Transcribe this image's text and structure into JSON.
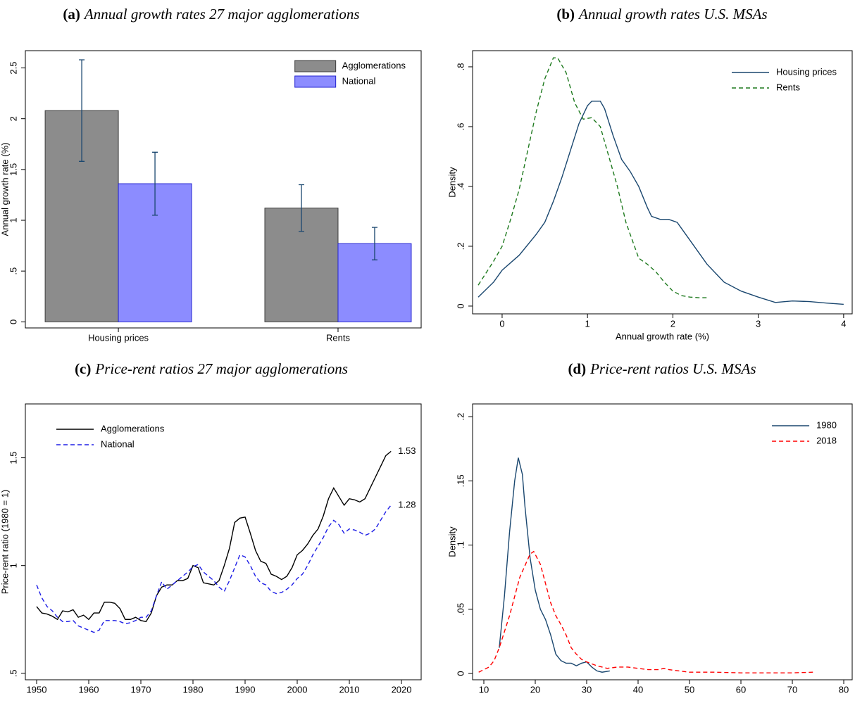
{
  "chart_data": [
    {
      "type": "bar",
      "label": "(a)",
      "title": "Annual growth rates 27 major agglomerations",
      "ylabel": "Annual growth rate (%)",
      "categories": [
        "Housing prices",
        "Rents"
      ],
      "series": [
        {
          "name": "Agglomerations",
          "color": "#8c8c8c",
          "values": [
            2.08,
            1.12
          ],
          "errors": [
            0.5,
            0.23
          ]
        },
        {
          "name": "National",
          "color": "#8c8cff",
          "values": [
            1.36,
            0.77
          ],
          "errors": [
            0.31,
            0.16
          ]
        }
      ],
      "ylim": [
        -0.06,
        2.67
      ],
      "yticks": [
        0,
        {
          "value": 0.5,
          "label": ".5"
        },
        1,
        1.5,
        2,
        2.5
      ],
      "legend": "upper right",
      "grid": false
    },
    {
      "type": "line",
      "label": "(b)",
      "title": "Annual growth rates U.S. MSAs",
      "xlabel": "Annual growth rate (%)",
      "ylabel": "Density",
      "series": [
        {
          "name": "Housing prices",
          "color": "#1a476f",
          "line_style": "solid",
          "x": [
            -0.28,
            -0.1,
            0,
            0.2,
            0.4,
            0.5,
            0.6,
            0.7,
            0.8,
            0.9,
            1.0,
            1.05,
            1.15,
            1.2,
            1.3,
            1.4,
            1.5,
            1.6,
            1.7,
            1.75,
            1.85,
            1.95,
            2.05,
            2.2,
            2.4,
            2.6,
            2.8,
            3.0,
            3.2,
            3.4,
            3.6,
            3.8,
            4.0
          ],
          "values": [
            0.03,
            0.08,
            0.12,
            0.17,
            0.24,
            0.28,
            0.35,
            0.43,
            0.52,
            0.61,
            0.67,
            0.685,
            0.685,
            0.66,
            0.57,
            0.49,
            0.45,
            0.4,
            0.33,
            0.3,
            0.29,
            0.29,
            0.28,
            0.22,
            0.14,
            0.08,
            0.05,
            0.03,
            0.012,
            0.017,
            0.015,
            0.01,
            0.006
          ]
        },
        {
          "name": "Rents",
          "color": "#1f7a1f",
          "line_style": "dashed",
          "x": [
            -0.28,
            -0.1,
            0,
            0.1,
            0.2,
            0.3,
            0.4,
            0.5,
            0.6,
            0.65,
            0.75,
            0.85,
            0.95,
            1.05,
            1.15,
            1.25,
            1.35,
            1.45,
            1.55,
            1.6,
            1.7,
            1.8,
            1.9,
            2.0,
            2.1,
            2.2,
            2.3,
            2.4
          ],
          "values": [
            0.07,
            0.15,
            0.2,
            0.29,
            0.39,
            0.52,
            0.65,
            0.76,
            0.83,
            0.83,
            0.78,
            0.68,
            0.625,
            0.63,
            0.6,
            0.5,
            0.4,
            0.28,
            0.2,
            0.16,
            0.14,
            0.115,
            0.08,
            0.05,
            0.035,
            0.03,
            0.028,
            0.028
          ]
        }
      ],
      "xlim": [
        -0.346,
        4.1
      ],
      "xticks": [
        0,
        1,
        2,
        3,
        4
      ],
      "ylim": [
        -0.026,
        0.854
      ],
      "yticks": [
        0,
        {
          "value": 0.2,
          "label": ".2"
        },
        {
          "value": 0.4,
          "label": ".4"
        },
        {
          "value": 0.6,
          "label": ".6"
        },
        {
          "value": 0.8,
          "label": ".8"
        }
      ],
      "legend": "upper right",
      "grid": false
    },
    {
      "type": "line",
      "label": "(c)",
      "title": "Price-rent ratios 27 major agglomerations",
      "ylabel": "Price-rent ratio (1980 = 1)",
      "x": [
        1950,
        1951,
        1952,
        1953,
        1954,
        1955,
        1956,
        1957,
        1958,
        1959,
        1960,
        1961,
        1962,
        1963,
        1964,
        1965,
        1966,
        1967,
        1968,
        1969,
        1970,
        1971,
        1972,
        1973,
        1974,
        1975,
        1976,
        1977,
        1978,
        1979,
        1980,
        1981,
        1982,
        1983,
        1984,
        1985,
        1986,
        1987,
        1988,
        1989,
        1990,
        1991,
        1992,
        1993,
        1994,
        1995,
        1996,
        1997,
        1998,
        1999,
        2000,
        2001,
        2002,
        2003,
        2004,
        2005,
        2006,
        2007,
        2008,
        2009,
        2010,
        2011,
        2012,
        2013,
        2014,
        2015,
        2016,
        2017,
        2018
      ],
      "series": [
        {
          "name": "Agglomerations",
          "color": "#000000",
          "line_style": "solid",
          "values": [
            0.81,
            0.78,
            0.775,
            0.765,
            0.75,
            0.79,
            0.785,
            0.795,
            0.76,
            0.77,
            0.75,
            0.78,
            0.78,
            0.83,
            0.83,
            0.825,
            0.8,
            0.75,
            0.75,
            0.76,
            0.745,
            0.74,
            0.78,
            0.86,
            0.9,
            0.91,
            0.91,
            0.93,
            0.93,
            0.94,
            1.0,
            0.99,
            0.92,
            0.915,
            0.91,
            0.93,
            1.0,
            1.08,
            1.2,
            1.22,
            1.225,
            1.15,
            1.07,
            1.02,
            1.01,
            0.96,
            0.95,
            0.935,
            0.95,
            0.99,
            1.05,
            1.07,
            1.1,
            1.14,
            1.17,
            1.23,
            1.31,
            1.36,
            1.32,
            1.28,
            1.31,
            1.305,
            1.295,
            1.31,
            1.36,
            1.41,
            1.46,
            1.51,
            1.53
          ]
        },
        {
          "name": "National",
          "color": "#1e1ee6",
          "line_style": "dashed",
          "values": [
            0.91,
            0.85,
            0.81,
            0.79,
            0.76,
            0.74,
            0.74,
            0.745,
            0.72,
            0.71,
            0.7,
            0.69,
            0.7,
            0.745,
            0.745,
            0.745,
            0.74,
            0.73,
            0.735,
            0.745,
            0.76,
            0.76,
            0.79,
            0.86,
            0.925,
            0.89,
            0.91,
            0.93,
            0.95,
            0.97,
            0.995,
            1.005,
            0.97,
            0.95,
            0.93,
            0.9,
            0.88,
            0.93,
            0.99,
            1.05,
            1.04,
            1.0,
            0.95,
            0.92,
            0.91,
            0.88,
            0.87,
            0.875,
            0.89,
            0.91,
            0.94,
            0.96,
            1.0,
            1.05,
            1.09,
            1.13,
            1.18,
            1.21,
            1.19,
            1.15,
            1.17,
            1.165,
            1.155,
            1.14,
            1.15,
            1.17,
            1.21,
            1.25,
            1.28
          ]
        }
      ],
      "end_labels": true,
      "xlim": [
        1947.84,
        2023.78
      ],
      "xticks": [
        1950,
        1960,
        1970,
        1980,
        1990,
        2000,
        2010,
        2020
      ],
      "ylim": [
        0.47,
        1.75
      ],
      "yticks": [
        {
          "value": 0.5,
          "label": ".5"
        },
        1,
        1.5
      ],
      "legend": "upper left",
      "grid": false
    },
    {
      "type": "line",
      "label": "(d)",
      "title": "Price-rent ratios U.S. MSAs",
      "ylabel": "Density",
      "series": [
        {
          "name": "1980",
          "color": "#1a476f",
          "line_style": "solid",
          "x": [
            13,
            14,
            15,
            16,
            16.7,
            17.5,
            18,
            19,
            20,
            21,
            22,
            23,
            24,
            25,
            26,
            27,
            28,
            29,
            30,
            31,
            32,
            33,
            34.5
          ],
          "values": [
            0.02,
            0.06,
            0.11,
            0.15,
            0.168,
            0.155,
            0.13,
            0.09,
            0.065,
            0.05,
            0.042,
            0.03,
            0.015,
            0.01,
            0.008,
            0.008,
            0.006,
            0.008,
            0.009,
            0.005,
            0.002,
            0.001,
            0.002
          ]
        },
        {
          "name": "2018",
          "color": "#ff0000",
          "line_style": "dashed",
          "x": [
            9,
            11,
            12,
            13,
            15,
            17,
            19,
            19.7,
            21,
            22,
            23,
            24,
            25,
            26,
            27,
            28,
            29,
            30,
            32,
            34,
            36,
            38,
            40,
            42,
            44,
            45,
            46,
            48,
            50,
            55,
            60,
            65,
            70,
            74
          ],
          "values": [
            0.001,
            0.005,
            0.01,
            0.02,
            0.045,
            0.075,
            0.093,
            0.095,
            0.085,
            0.07,
            0.055,
            0.045,
            0.038,
            0.03,
            0.02,
            0.015,
            0.011,
            0.009,
            0.006,
            0.004,
            0.005,
            0.005,
            0.004,
            0.003,
            0.003,
            0.004,
            0.003,
            0.002,
            0.001,
            0.001,
            0.0005,
            0.0005,
            0.0005,
            0.001
          ]
        }
      ],
      "xlim": [
        7.81,
        81.64
      ],
      "xticks": [
        10,
        20,
        30,
        40,
        50,
        60,
        70,
        80
      ],
      "ylim": [
        -0.0049,
        0.2099
      ],
      "yticks": [
        0,
        {
          "value": 0.05,
          "label": ".05"
        },
        {
          "value": 0.1,
          "label": ".1"
        },
        {
          "value": 0.15,
          "label": ".15"
        },
        {
          "value": 0.2,
          "label": ".2"
        }
      ],
      "legend": "upper right",
      "grid": false
    }
  ]
}
